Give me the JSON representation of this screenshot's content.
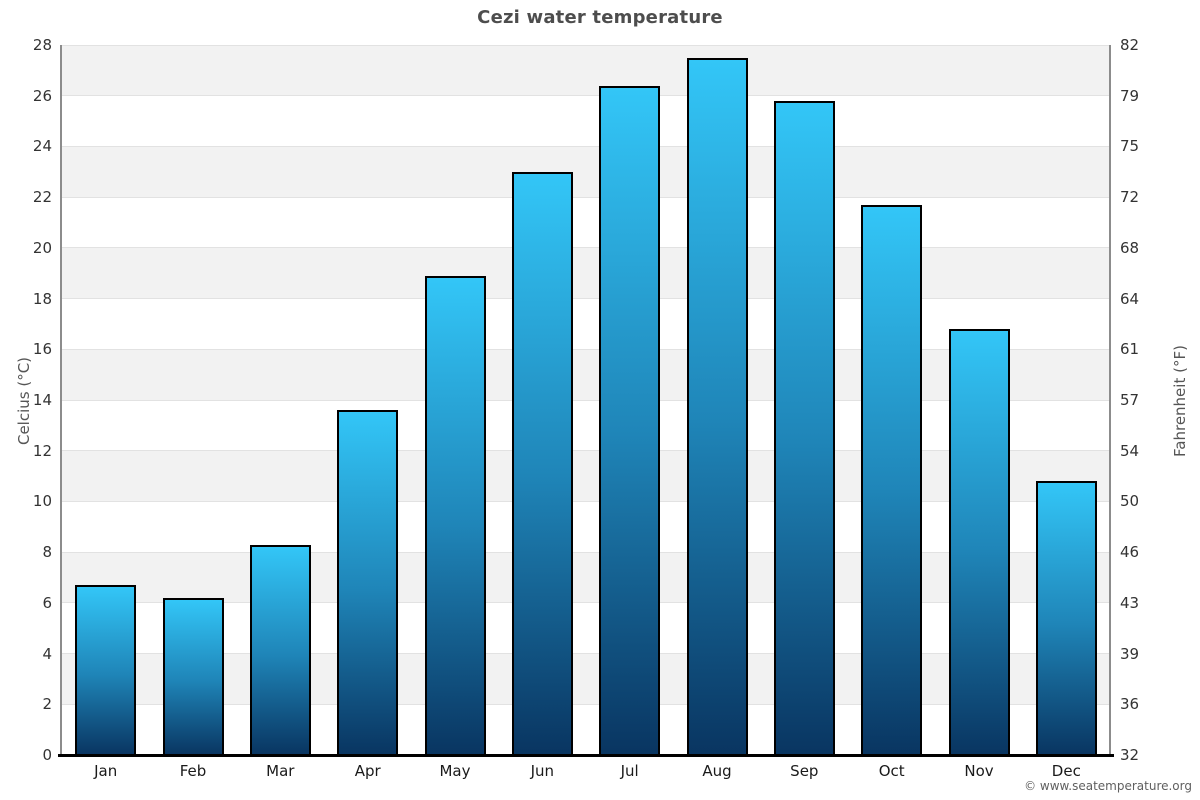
{
  "title": "Cezi water temperature",
  "attribution": "© www.seatemperature.org",
  "chart_data": {
    "type": "bar",
    "categories": [
      "Jan",
      "Feb",
      "Mar",
      "Apr",
      "May",
      "Jun",
      "Jul",
      "Aug",
      "Sep",
      "Oct",
      "Nov",
      "Dec"
    ],
    "values": [
      6.7,
      6.2,
      8.3,
      13.6,
      18.9,
      23.0,
      26.4,
      27.5,
      25.8,
      21.7,
      16.8,
      10.8
    ],
    "title": "Cezi water temperature",
    "xlabel": "",
    "ylabel_left": "Celcius (°C)",
    "ylabel_right": "Fahrenheit (°F)",
    "ylim": [
      0,
      28
    ],
    "yticks_celsius": [
      0,
      2,
      4,
      6,
      8,
      10,
      12,
      14,
      16,
      18,
      20,
      22,
      24,
      26,
      28
    ],
    "yticks_fahrenheit": [
      32,
      36,
      39,
      43,
      46,
      50,
      54,
      57,
      61,
      64,
      68,
      72,
      75,
      79,
      82
    ],
    "grid": "horizontal-bands",
    "legend": "none",
    "colors": {
      "bar_top": "#33c6f7",
      "bar_mid": "#1f85b8",
      "bar_bottom": "#093561",
      "bar_border": "#000000",
      "band_gray": "#f2f2f2",
      "band_white": "#ffffff",
      "gridline": "#e2e2e2",
      "axis_line": "#8c8c8c",
      "x_axis_line": "#000000",
      "title_color": "#4d4d4d",
      "tick_color": "#333333"
    }
  }
}
